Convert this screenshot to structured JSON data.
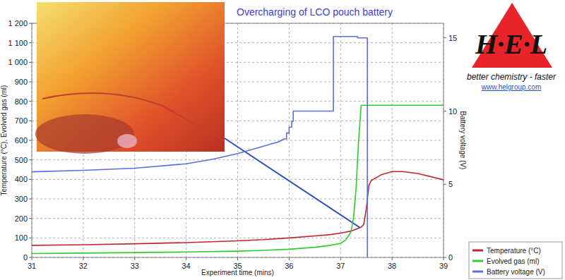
{
  "chart_data": {
    "type": "line",
    "title": "Overcharging of LCO pouch battery",
    "x_label": "Experiment time (mins)",
    "y_label": "Temperature (°C), Evolved gas (ml)",
    "y2_label": "Battery voltage (V)",
    "xlim": [
      31,
      39
    ],
    "xticks": [
      31,
      32,
      33,
      34,
      35,
      36,
      37,
      38,
      39
    ],
    "ylim": [
      0,
      1200
    ],
    "yticks": [
      0,
      100,
      200,
      300,
      400,
      500,
      600,
      700,
      800,
      900,
      {
        "value": 1000,
        "label": "1 000"
      },
      {
        "value": 1100,
        "label": "1 100"
      },
      {
        "value": 1200,
        "label": "1 200"
      }
    ],
    "y2lim": [
      0,
      16
    ],
    "y2ticks": [
      0,
      5,
      10,
      15
    ],
    "grid": true,
    "legend": "bottom-right",
    "logo": {
      "text": "H·E·L",
      "tagline": "better chemistry - faster",
      "url": "www.helgroup.com"
    },
    "series": [
      {
        "name": "Temperature (°C)",
        "color": "#c0272d",
        "x": [
          31,
          32,
          33,
          34,
          35,
          35.5,
          36,
          36.5,
          36.8,
          37,
          37.2,
          37.3,
          37.4,
          37.45,
          37.5,
          37.55,
          37.6,
          37.7,
          37.8,
          38,
          38.2,
          38.5,
          39
        ],
        "values": [
          62,
          65,
          70,
          76,
          85,
          91,
          100,
          110,
          117,
          125,
          135,
          145,
          155,
          170,
          250,
          370,
          395,
          410,
          425,
          440,
          440,
          430,
          398
        ]
      },
      {
        "name": "Evolved gas (ml)",
        "color": "#2ecc2e",
        "x": [
          31,
          32,
          33,
          34,
          35,
          35.5,
          36,
          36.5,
          36.8,
          37,
          37.1,
          37.2,
          37.25,
          37.3,
          37.35,
          37.4,
          37.45,
          38,
          39
        ],
        "values": [
          20,
          22,
          25,
          28,
          32,
          36,
          42,
          52,
          62,
          72,
          90,
          130,
          200,
          350,
          600,
          780,
          780,
          780,
          780
        ]
      },
      {
        "name": "Battery voltage (V)",
        "color": "#5a6ee0",
        "axis": "y2",
        "x": [
          31,
          32,
          33,
          34,
          34.5,
          35,
          35.3,
          35.6,
          35.8,
          35.9,
          35.95,
          35.95,
          36.0,
          36.0,
          36.05,
          36.05,
          36.08,
          36.08,
          36.86,
          36.86,
          37.33,
          37.33,
          37.52,
          37.52
        ],
        "values": [
          5.85,
          5.95,
          6.1,
          6.4,
          6.7,
          7.1,
          7.4,
          7.7,
          7.9,
          8.1,
          8.1,
          8.5,
          8.5,
          8.9,
          8.9,
          9.3,
          9.3,
          10.0,
          10.0,
          15.1,
          15.1,
          15.0,
          15.0,
          0
        ]
      }
    ]
  }
}
